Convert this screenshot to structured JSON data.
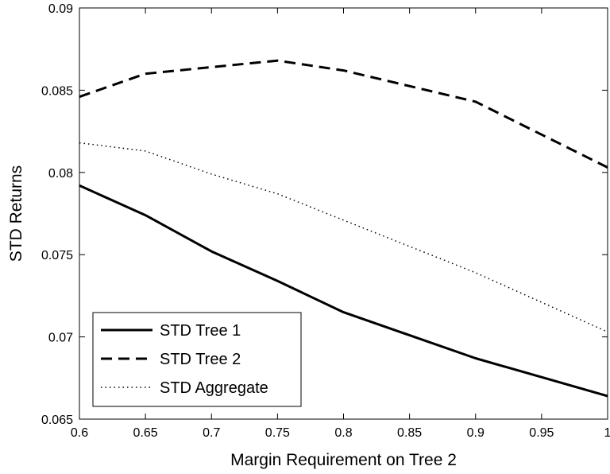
{
  "chart_data": {
    "type": "line",
    "title": "",
    "xlabel": "Margin Requirement on Tree 2",
    "ylabel": "STD Returns",
    "xlim": [
      0.6,
      1.0
    ],
    "ylim": [
      0.065,
      0.09
    ],
    "x_ticks": [
      "0.6",
      "0.65",
      "0.7",
      "0.75",
      "0.8",
      "0.85",
      "0.9",
      "0.95",
      "1"
    ],
    "y_ticks": [
      "0.065",
      "0.07",
      "0.075",
      "0.08",
      "0.085",
      "0.09"
    ],
    "grid": false,
    "legend_position": "bottom-left",
    "series": [
      {
        "name": "STD Tree 1",
        "style": "solid",
        "color": "#000000",
        "x": [
          0.6,
          0.65,
          0.7,
          0.75,
          0.8,
          0.9,
          1.0
        ],
        "y": [
          0.0792,
          0.0774,
          0.0752,
          0.0734,
          0.0715,
          0.0687,
          0.0664
        ]
      },
      {
        "name": "STD Tree 2",
        "style": "dashed",
        "color": "#000000",
        "x": [
          0.6,
          0.65,
          0.7,
          0.75,
          0.8,
          0.9,
          1.0
        ],
        "y": [
          0.0846,
          0.086,
          0.0864,
          0.0868,
          0.0862,
          0.0843,
          0.0803
        ]
      },
      {
        "name": "STD Aggregate",
        "style": "dotted",
        "color": "#000000",
        "x": [
          0.6,
          0.65,
          0.7,
          0.75,
          0.8,
          0.9,
          1.0
        ],
        "y": [
          0.0818,
          0.0813,
          0.0799,
          0.0787,
          0.0771,
          0.0739,
          0.0703
        ]
      }
    ]
  }
}
